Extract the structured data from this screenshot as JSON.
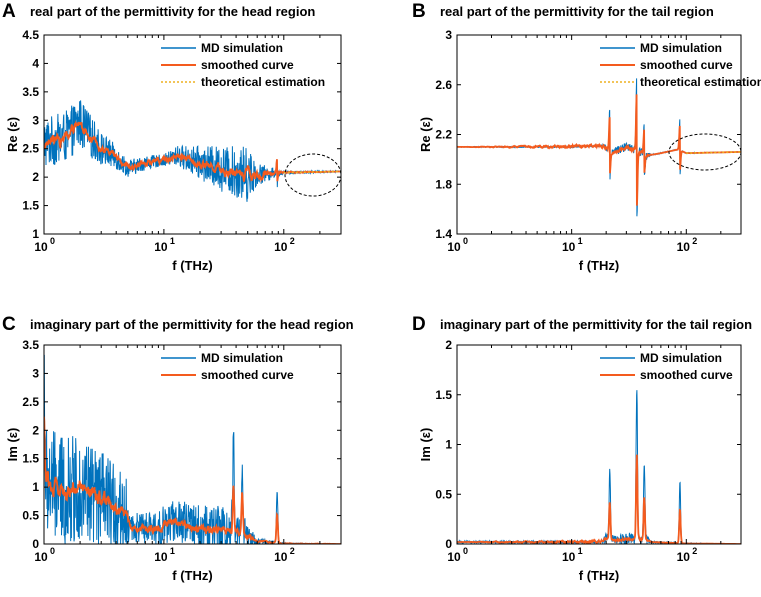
{
  "chart_data": [
    {
      "panel": "A",
      "type": "line",
      "title": "real part of the permittivity for the head region",
      "xlabel": "f (THz)",
      "ylabel": "Re (ε)",
      "xscale": "log",
      "xlim": [
        1,
        300
      ],
      "ylim": [
        1,
        4.5
      ],
      "yticks": [
        "1",
        "1.5",
        "2",
        "2.5",
        "3",
        "3.5",
        "4",
        "4.5"
      ],
      "xticks": [
        {
          "base": "10",
          "exp": "0"
        },
        {
          "base": "10",
          "exp": "1"
        },
        {
          "base": "10",
          "exp": "2"
        }
      ],
      "legend": [
        "MD simulation",
        "smoothed curve",
        "theoretical estimation"
      ],
      "annotation": "dashed ellipse around the high-frequency plateau (100–300 THz)",
      "baseline": [
        [
          1,
          2.6
        ],
        [
          1.5,
          2.7
        ],
        [
          2,
          2.95
        ],
        [
          3,
          2.5
        ],
        [
          4,
          2.35
        ],
        [
          5,
          2.15
        ],
        [
          7,
          2.25
        ],
        [
          10,
          2.3
        ],
        [
          13,
          2.38
        ],
        [
          20,
          2.25
        ],
        [
          30,
          2.15
        ],
        [
          50,
          2.05
        ],
        [
          60,
          2.05
        ],
        [
          100,
          2.08
        ],
        [
          300,
          2.1
        ]
      ],
      "md_amp": [
        [
          1,
          0.45
        ],
        [
          2,
          0.45
        ],
        [
          3,
          0.3
        ],
        [
          5,
          0.15
        ],
        [
          10,
          0.1
        ],
        [
          15,
          0.22
        ],
        [
          30,
          0.4
        ],
        [
          50,
          0.5
        ],
        [
          60,
          0.2
        ],
        [
          100,
          0.03
        ],
        [
          300,
          0.01
        ]
      ],
      "smooth_amp": [
        [
          1,
          0.15
        ],
        [
          5,
          0.06
        ],
        [
          15,
          0.08
        ],
        [
          50,
          0.15
        ],
        [
          100,
          0.02
        ],
        [
          300,
          0.0
        ]
      ],
      "spikes": [
        {
          "f": 88,
          "up": 0.3,
          "down": -0.2
        }
      ],
      "theory": [
        [
          100,
          2.08
        ],
        [
          300,
          2.1
        ]
      ]
    },
    {
      "panel": "B",
      "type": "line",
      "title": "real part of the permittivity for the tail region",
      "xlabel": "f (THz)",
      "ylabel": "Re (ε)",
      "xscale": "log",
      "xlim": [
        1,
        300
      ],
      "ylim": [
        1.4,
        3
      ],
      "yticks": [
        "1.4",
        "1.8",
        "2.2",
        "2.6",
        "3"
      ],
      "xticks": [
        {
          "base": "10",
          "exp": "0"
        },
        {
          "base": "10",
          "exp": "1"
        },
        {
          "base": "10",
          "exp": "2"
        }
      ],
      "legend": [
        "MD simulation",
        "smoothed curve",
        "theoretical estimation"
      ],
      "annotation": "dashed ellipse around the high-frequency plateau (100–300 THz)",
      "baseline": [
        [
          1,
          2.1
        ],
        [
          10,
          2.1
        ],
        [
          19,
          2.11
        ],
        [
          22,
          2.05
        ],
        [
          30,
          2.1
        ],
        [
          36,
          2.08
        ],
        [
          45,
          2.03
        ],
        [
          60,
          2.05
        ],
        [
          85,
          2.08
        ],
        [
          100,
          2.05
        ],
        [
          300,
          2.06
        ]
      ],
      "md_amp": [
        [
          1,
          0.003
        ],
        [
          18,
          0.005
        ],
        [
          20,
          0.03
        ],
        [
          45,
          0.04
        ],
        [
          50,
          0.005
        ],
        [
          300,
          0.002
        ]
      ],
      "smooth_amp": [
        [
          1,
          0.0
        ],
        [
          20,
          0.02
        ],
        [
          45,
          0.02
        ],
        [
          50,
          0.0
        ],
        [
          300,
          0.0
        ]
      ],
      "spikes": [
        {
          "f": 21.5,
          "up": 0.35,
          "down": -0.22
        },
        {
          "f": 37,
          "up": 0.6,
          "down": -0.55
        },
        {
          "f": 43,
          "up": 0.25,
          "down": -0.2
        },
        {
          "f": 88,
          "up": 0.25,
          "down": -0.2
        }
      ],
      "theory": [
        [
          100,
          2.05
        ],
        [
          300,
          2.06
        ]
      ]
    },
    {
      "panel": "C",
      "type": "line",
      "title": "imaginary part of the permittivity for the head region",
      "xlabel": "f (THz)",
      "ylabel": "Im (ε)",
      "xscale": "log",
      "xlim": [
        1,
        300
      ],
      "ylim": [
        0,
        3.5
      ],
      "yticks": [
        "0",
        "0.5",
        "1",
        "1.5",
        "2",
        "2.5",
        "3",
        "3.5"
      ],
      "xticks": [
        {
          "base": "10",
          "exp": "0"
        },
        {
          "base": "10",
          "exp": "1"
        },
        {
          "base": "10",
          "exp": "2"
        }
      ],
      "legend": [
        "MD simulation",
        "smoothed curve"
      ],
      "baseline": [
        [
          1,
          1.1
        ],
        [
          1.5,
          0.9
        ],
        [
          2,
          1.0
        ],
        [
          3,
          0.75
        ],
        [
          4,
          0.6
        ],
        [
          4.8,
          0.55
        ],
        [
          5.2,
          0.3
        ],
        [
          8,
          0.25
        ],
        [
          12,
          0.4
        ],
        [
          15,
          0.35
        ],
        [
          20,
          0.28
        ],
        [
          30,
          0.25
        ],
        [
          45,
          0.2
        ],
        [
          60,
          0.05
        ],
        [
          85,
          0.03
        ],
        [
          100,
          0.01
        ],
        [
          300,
          0.0
        ]
      ],
      "md_amp": [
        [
          1,
          1.0
        ],
        [
          3,
          0.9
        ],
        [
          4.8,
          0.7
        ],
        [
          5.2,
          0.25
        ],
        [
          15,
          0.4
        ],
        [
          40,
          0.45
        ],
        [
          60,
          0.05
        ],
        [
          100,
          0.01
        ],
        [
          300,
          0.0
        ]
      ],
      "smooth_amp": [
        [
          1,
          0.25
        ],
        [
          4.8,
          0.15
        ],
        [
          5.2,
          0.08
        ],
        [
          40,
          0.12
        ],
        [
          60,
          0.02
        ],
        [
          300,
          0.0
        ]
      ],
      "spikes": [
        {
          "f": 1.0,
          "up": 2.1,
          "down": 0
        },
        {
          "f": 38,
          "up": 1.6,
          "down": 0
        },
        {
          "f": 45,
          "up": 1.2,
          "down": 0
        },
        {
          "f": 88,
          "up": 0.9,
          "down": 0
        }
      ],
      "clip_min": 0
    },
    {
      "panel": "D",
      "type": "line",
      "title": "imaginary part of the permittivity for the tail region",
      "xlabel": "f (THz)",
      "ylabel": "Im (ε)",
      "xscale": "log",
      "xlim": [
        1,
        300
      ],
      "ylim": [
        0,
        2
      ],
      "yticks": [
        "0",
        "0.5",
        "1",
        "1.5",
        "2"
      ],
      "xticks": [
        {
          "base": "10",
          "exp": "0"
        },
        {
          "base": "10",
          "exp": "1"
        },
        {
          "base": "10",
          "exp": "2"
        }
      ],
      "legend": [
        "MD simulation",
        "smoothed curve"
      ],
      "baseline": [
        [
          1,
          0.02
        ],
        [
          18,
          0.02
        ],
        [
          20,
          0.06
        ],
        [
          25,
          0.04
        ],
        [
          30,
          0.05
        ],
        [
          36,
          0.06
        ],
        [
          45,
          0.04
        ],
        [
          50,
          0.02
        ],
        [
          80,
          0.01
        ],
        [
          100,
          0.005
        ],
        [
          300,
          0.0
        ]
      ],
      "md_amp": [
        [
          1,
          0.01
        ],
        [
          18,
          0.01
        ],
        [
          20,
          0.05
        ],
        [
          45,
          0.06
        ],
        [
          50,
          0.01
        ],
        [
          300,
          0.0
        ]
      ],
      "smooth_amp": [
        [
          1,
          0.0
        ],
        [
          20,
          0.02
        ],
        [
          45,
          0.02
        ],
        [
          50,
          0.0
        ],
        [
          300,
          0.0
        ]
      ],
      "spikes": [
        {
          "f": 21.5,
          "up": 0.68,
          "down": 0
        },
        {
          "f": 37,
          "up": 1.55,
          "down": 0
        },
        {
          "f": 43,
          "up": 0.8,
          "down": 0
        },
        {
          "f": 88,
          "up": 0.62,
          "down": 0
        }
      ],
      "clip_min": 0
    }
  ],
  "colors": {
    "md": "#0072BD",
    "smooth": "#F45B1E",
    "theory": "#EDB120"
  }
}
